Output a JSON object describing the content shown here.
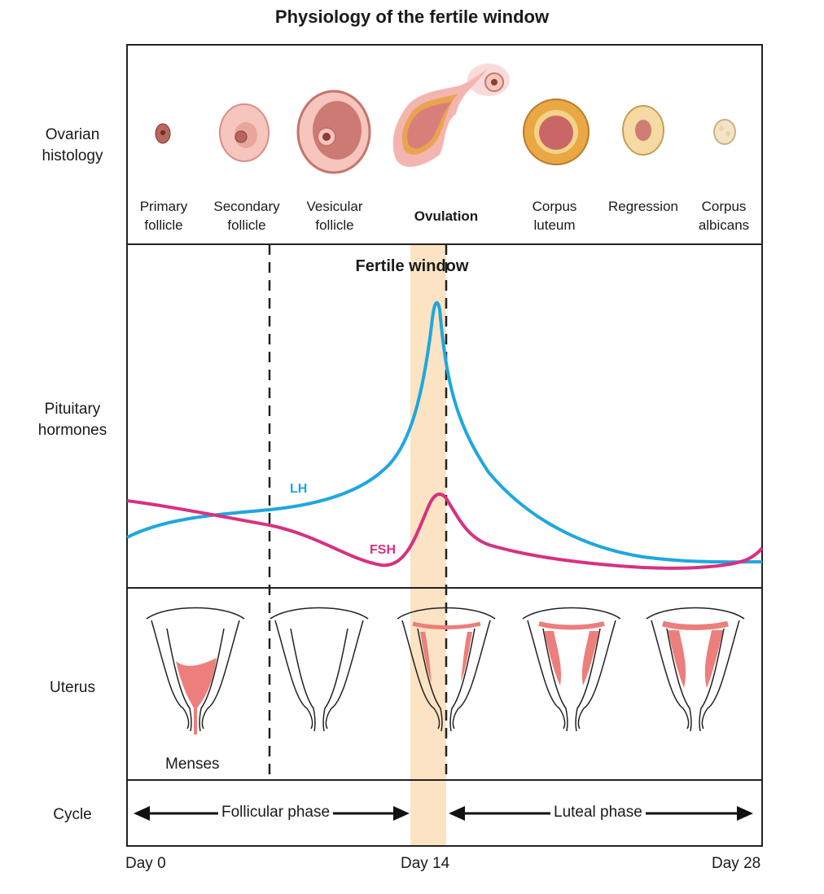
{
  "title": "Physiology of the fertile window",
  "row_labels": {
    "ovarian": [
      "Ovarian",
      "histology"
    ],
    "pituitary": [
      "Pituitary",
      "hormones"
    ],
    "uterus": "Uterus",
    "cycle": "Cycle"
  },
  "stages": [
    {
      "line1": "Primary",
      "line2": "follicle"
    },
    {
      "line1": "Secondary",
      "line2": "follicle"
    },
    {
      "line1": "Vesicular",
      "line2": "follicle"
    },
    {
      "line1": "Ovulation",
      "line2": ""
    },
    {
      "line1": "Corpus",
      "line2": "luteum"
    },
    {
      "line1": "Regression",
      "line2": ""
    },
    {
      "line1": "Corpus",
      "line2": "albicans"
    }
  ],
  "fertile_window_label": "Fertile window",
  "hormones": {
    "lh": {
      "label": "LH",
      "color": "#1ea7de"
    },
    "fsh": {
      "label": "FSH",
      "color": "#d7317f"
    }
  },
  "uterus_caption": "Menses",
  "phases": {
    "follicular": "Follicular phase",
    "luteal": "Luteal phase"
  },
  "days": {
    "start": "Day 0",
    "mid": "Day 14",
    "end": "Day 28"
  },
  "colors": {
    "fertile_band": "#fbe3c3",
    "tissue_pink": "#ec7e7c",
    "follicle_fill": "#f6c5bd",
    "corpus_luteum": "#e9a844"
  }
}
